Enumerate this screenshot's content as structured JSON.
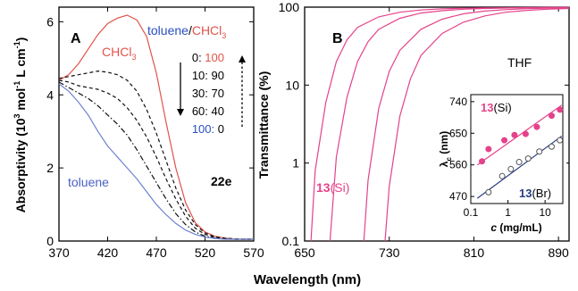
{
  "figure": {
    "xlabel": "Wavelength (nm)"
  },
  "chart_data": [
    {
      "panel": "A",
      "type": "line",
      "xlabel": "",
      "ylabel_parts": [
        "Absorptivity (10",
        "3",
        " mol",
        "-1",
        " L cm",
        "-1",
        ")"
      ],
      "xlim": [
        370,
        570
      ],
      "ylim": [
        0,
        6.4
      ],
      "xticks": [
        370,
        420,
        470,
        520,
        570
      ],
      "yticks": [
        0,
        2,
        4,
        6
      ],
      "legend_title_parts": [
        "toluene",
        "/",
        "CHCl",
        "3"
      ],
      "ratio_rows": [
        [
          "0",
          "100"
        ],
        [
          "10",
          "90"
        ],
        [
          "30",
          "70"
        ],
        [
          "60",
          "40"
        ],
        [
          "100",
          "0"
        ]
      ],
      "label_chcl3": [
        "CHCl",
        "3"
      ],
      "label_toluene": "toluene",
      "compound": "22e",
      "colors": {
        "chcl3": "#e0534b",
        "toluene": "#6e82d0",
        "mix": "#111111"
      },
      "series": [
        {
          "name": "CHCl3",
          "style": "solid",
          "color": "chcl3",
          "x": [
            370,
            380,
            390,
            400,
            410,
            420,
            430,
            440,
            450,
            460,
            470,
            480,
            490,
            500,
            510,
            520,
            530,
            540,
            550,
            560,
            570
          ],
          "y": [
            4.4,
            4.55,
            4.85,
            5.25,
            5.65,
            5.95,
            6.1,
            6.18,
            6.05,
            5.6,
            4.6,
            3.25,
            2.0,
            1.05,
            0.5,
            0.25,
            0.13,
            0.08,
            0.05,
            0.05,
            0.05
          ]
        },
        {
          "name": "10:90",
          "style": "dash",
          "color": "mix",
          "x": [
            370,
            380,
            390,
            400,
            410,
            420,
            430,
            440,
            450,
            460,
            470,
            480,
            490,
            500,
            510,
            520,
            530,
            540,
            550,
            560,
            570
          ],
          "y": [
            4.45,
            4.5,
            4.55,
            4.6,
            4.65,
            4.62,
            4.55,
            4.4,
            4.1,
            3.6,
            2.95,
            2.2,
            1.45,
            0.85,
            0.45,
            0.22,
            0.12,
            0.08,
            0.06,
            0.05,
            0.05
          ]
        },
        {
          "name": "30:70",
          "style": "dash",
          "color": "mix",
          "x": [
            370,
            380,
            390,
            400,
            410,
            420,
            430,
            440,
            450,
            460,
            470,
            480,
            490,
            500,
            510,
            520,
            530,
            540,
            550,
            560,
            570
          ],
          "y": [
            4.4,
            4.35,
            4.25,
            4.2,
            4.15,
            4.05,
            3.9,
            3.65,
            3.3,
            2.85,
            2.3,
            1.7,
            1.15,
            0.68,
            0.35,
            0.18,
            0.1,
            0.07,
            0.05,
            0.05,
            0.05
          ]
        },
        {
          "name": "60:40",
          "style": "dashdot",
          "color": "mix",
          "x": [
            370,
            380,
            390,
            400,
            410,
            420,
            430,
            440,
            450,
            460,
            470,
            480,
            490,
            500,
            510,
            520,
            530,
            540,
            550,
            560,
            570
          ],
          "y": [
            4.35,
            4.2,
            4.05,
            3.9,
            3.7,
            3.45,
            3.2,
            2.9,
            2.5,
            2.05,
            1.6,
            1.15,
            0.75,
            0.45,
            0.25,
            0.13,
            0.08,
            0.06,
            0.05,
            0.05,
            0.05
          ]
        },
        {
          "name": "toluene",
          "style": "solid",
          "color": "toluene",
          "x": [
            370,
            380,
            390,
            400,
            410,
            420,
            430,
            440,
            450,
            460,
            470,
            480,
            490,
            500,
            510,
            520,
            530,
            540,
            550,
            560,
            570
          ],
          "y": [
            4.3,
            4.1,
            3.8,
            3.45,
            3.0,
            2.6,
            2.3,
            2.0,
            1.7,
            1.35,
            1.0,
            0.72,
            0.48,
            0.3,
            0.18,
            0.11,
            0.07,
            0.05,
            0.05,
            0.05,
            0.05
          ]
        }
      ]
    },
    {
      "panel": "B",
      "type": "line",
      "xlabel": "",
      "ylabel": "Transmittance (%)",
      "xlim": [
        650,
        900
      ],
      "ylim": [
        0.1,
        100
      ],
      "yscale": "log",
      "xticks": [
        650,
        730,
        810,
        890
      ],
      "yticks": [
        0.1,
        1,
        10,
        100
      ],
      "ytick_labels": [
        "0.1",
        "1",
        "10",
        "100"
      ],
      "solvent": "THF",
      "compound_label": [
        "13",
        "(Si)"
      ],
      "color": "#e4428a",
      "series": [
        {
          "x": [
            656,
            660,
            670,
            680,
            690,
            700,
            720,
            740,
            760,
            780,
            800,
            820,
            840,
            860,
            880,
            900
          ],
          "y": [
            0.1,
            0.8,
            6,
            20,
            38,
            55,
            75,
            86,
            92,
            95,
            96.8,
            97.7,
            98.3,
            98.7,
            98.9,
            99
          ]
        },
        {
          "x": [
            674,
            680,
            690,
            700,
            710,
            720,
            740,
            760,
            780,
            800,
            820,
            840,
            860,
            880,
            900
          ],
          "y": [
            0.1,
            1.2,
            7,
            20,
            36,
            52,
            72,
            84,
            90,
            94,
            96,
            97.3,
            98.1,
            98.6,
            98.9
          ]
        },
        {
          "x": [
            706,
            710,
            720,
            730,
            740,
            760,
            780,
            800,
            820,
            840,
            860,
            880,
            900
          ],
          "y": [
            0.1,
            0.6,
            5,
            15,
            28,
            52,
            70,
            82,
            89,
            93,
            95.5,
            97,
            98
          ]
        },
        {
          "x": [
            726,
            730,
            740,
            750,
            760,
            780,
            800,
            820,
            840,
            860,
            880,
            900
          ],
          "y": [
            0.1,
            0.5,
            4,
            12,
            24,
            46,
            64,
            77,
            86,
            91,
            94,
            96
          ]
        }
      ],
      "inset": {
        "type": "scatter",
        "xscale": "log",
        "xlim": [
          0.1,
          30
        ],
        "ylim": [
          450,
          760
        ],
        "xticks": [
          0.1,
          1,
          10
        ],
        "xtick_labels": [
          "0.1",
          "1",
          "10"
        ],
        "yticks": [
          470,
          560,
          650,
          740
        ],
        "xlabel": "c (mg/mL)",
        "xlabel_parts": [
          "c",
          " (mg/mL)"
        ],
        "ylabel_parts": [
          "λ",
          "c",
          " (nm)"
        ],
        "colors": {
          "si": "#e4428a",
          "br": "#2a3d85"
        },
        "series": [
          {
            "name": "13(Si)",
            "name_parts": [
              "13",
              "(Si)"
            ],
            "marker": "filled",
            "x": [
              0.2,
              0.3,
              0.8,
              1.5,
              3,
              6,
              15,
              25
            ],
            "y": [
              570,
              605,
              630,
              645,
              648,
              668,
              700,
              717
            ],
            "fit": [
              [
                0.15,
                560
              ],
              [
                28,
                730
              ]
            ]
          },
          {
            "name": "13(Br)",
            "name_parts": [
              "13",
              "(Br)"
            ],
            "marker": "open",
            "x": [
              0.3,
              0.7,
              1.2,
              2,
              3.5,
              7,
              15,
              25
            ],
            "y": [
              482,
              528,
              548,
              568,
              578,
              598,
              612,
              630
            ],
            "fit": [
              [
                0.15,
                465
              ],
              [
                28,
                642
              ]
            ]
          }
        ]
      }
    }
  ]
}
